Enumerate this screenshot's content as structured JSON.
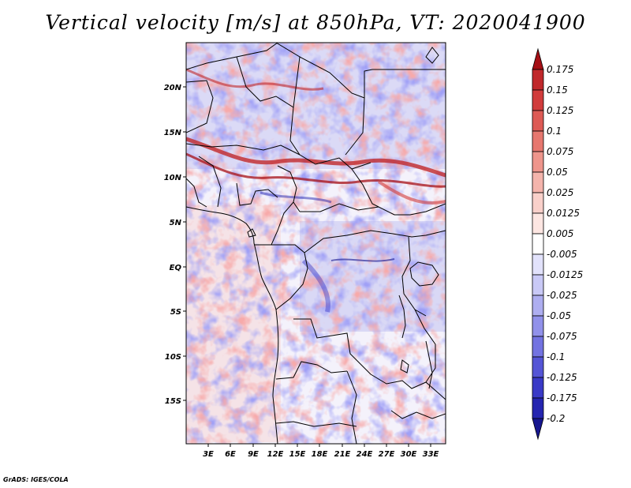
{
  "title": "Vertical velocity [m/s] at 850hPa, VT: 2020041900",
  "credit": "GrADS: IGES/COLA",
  "lat_labels": [
    "20N",
    "15N",
    "10N",
    "5N",
    "EQ",
    "5S",
    "10S",
    "15S"
  ],
  "lon_labels": [
    "3E",
    "6E",
    "9E",
    "12E",
    "15E",
    "18E",
    "21E",
    "24E",
    "27E",
    "30E",
    "33E"
  ],
  "colorbar": {
    "labels": [
      "0.175",
      "0.15",
      "0.125",
      "0.1",
      "0.075",
      "0.05",
      "0.025",
      "0.0125",
      "0.005",
      "-0.005",
      "-0.0125",
      "-0.025",
      "-0.05",
      "-0.075",
      "-0.1",
      "-0.125",
      "-0.175",
      "-0.2"
    ],
    "colors": [
      "#a50f15",
      "#c0282b",
      "#d13c3c",
      "#dd5a55",
      "#e6776f",
      "#ee958c",
      "#f4b4ac",
      "#f9d0ca",
      "#fde6e2",
      "#ffffff",
      "#e2e2fb",
      "#c9c9f6",
      "#aeaef0",
      "#9191ea",
      "#7373e1",
      "#5555d6",
      "#3a3ac7",
      "#2525b0",
      "#16168f"
    ]
  }
}
